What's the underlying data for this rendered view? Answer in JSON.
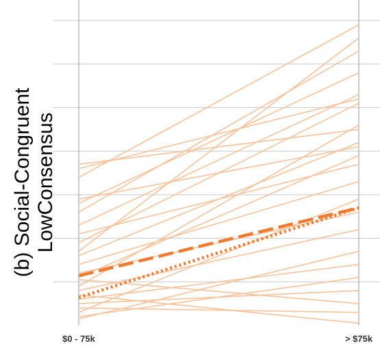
{
  "chart_data": {
    "type": "line",
    "ylabel_lines": [
      "(b) Social-Congruent",
      "LowConsensus"
    ],
    "categories": [
      "$0 - 75k",
      "> $75k"
    ],
    "ylim": [
      0,
      7
    ],
    "y_ticks": [
      1,
      2,
      3,
      4,
      5,
      6,
      7
    ],
    "grid": true,
    "colors": {
      "individual": "#f7c199",
      "summary": "#f07a2e",
      "grid": "#c8c8c8",
      "axis": "#999999"
    },
    "individual_series": [
      [
        3.4,
        6.9
      ],
      [
        3.6,
        5.2
      ],
      [
        3.7,
        4.5
      ],
      [
        2.8,
        5.8
      ],
      [
        2.6,
        6.3
      ],
      [
        2.9,
        4.1
      ],
      [
        2.3,
        5.3
      ],
      [
        2.1,
        3.7
      ],
      [
        1.9,
        5.1
      ],
      [
        1.7,
        6.6
      ],
      [
        1.6,
        4.2
      ],
      [
        1.4,
        3.3
      ],
      [
        1.2,
        2.6
      ],
      [
        1.1,
        3.9
      ],
      [
        0.9,
        4.6
      ],
      [
        0.8,
        2.2
      ],
      [
        0.6,
        1.4
      ],
      [
        0.5,
        0.8
      ],
      [
        0.4,
        0.3
      ],
      [
        0.3,
        2.9
      ],
      [
        0.2,
        1.1
      ],
      [
        0.15,
        1.7
      ],
      [
        1.05,
        0.5
      ],
      [
        0.7,
        0.05
      ]
    ],
    "summary_series": [
      {
        "style": "dashed",
        "values": [
          1.14,
          2.7
        ]
      },
      {
        "style": "dotted",
        "values": [
          0.64,
          2.7
        ]
      }
    ]
  }
}
